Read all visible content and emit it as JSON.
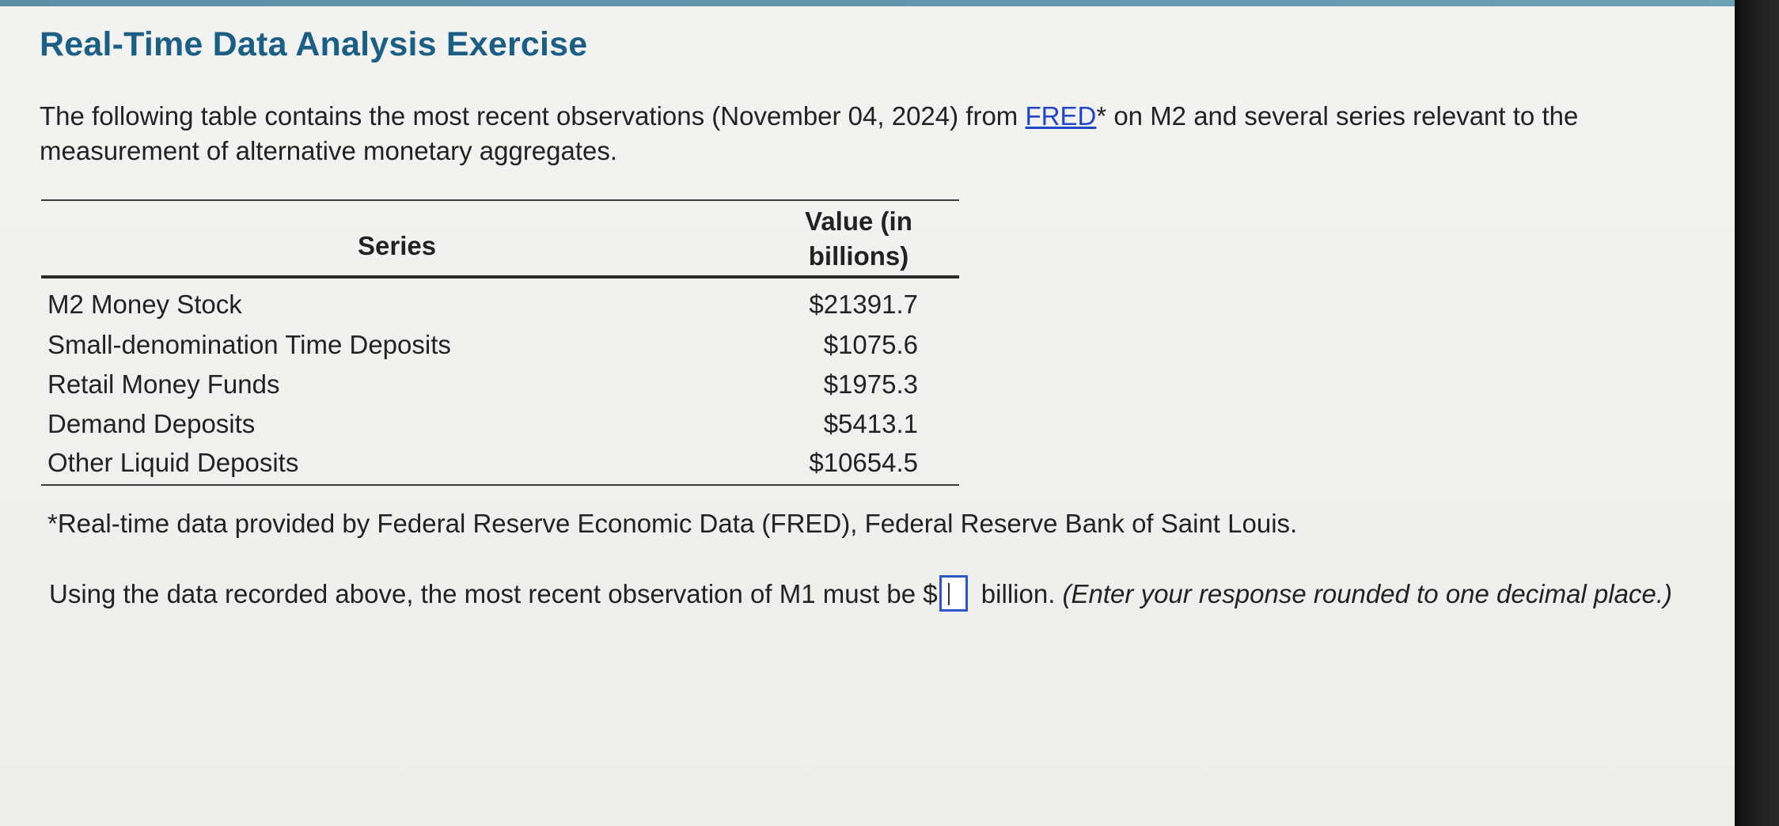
{
  "title": "Real-Time Data Analysis Exercise",
  "intro": {
    "before_link": "The following table contains the most recent observations (November 04, 2024) from ",
    "link_text": "FRED",
    "after_link": "* on M2 and several series relevant to the measurement of alternative monetary aggregates."
  },
  "table": {
    "header_series": "Series",
    "header_value": "Value (in billions)",
    "rows": [
      {
        "series": "M2 Money Stock",
        "value": "$21391.7"
      },
      {
        "series": "Small-denomination Time Deposits",
        "value": "$1075.6"
      },
      {
        "series": "Retail Money Funds",
        "value": "$1975.3"
      },
      {
        "series": "Demand Deposits",
        "value": "$5413.1"
      },
      {
        "series": "Other Liquid Deposits",
        "value": "$10654.5"
      }
    ]
  },
  "footnote": "*Real-time data provided by Federal Reserve Economic Data (FRED), Federal Reserve Bank of Saint Louis.",
  "question": {
    "before_input": "Using the data recorded above, the most recent observation of M1 must be $",
    "after_input": " billion. ",
    "instruction": "(Enter your response rounded to one decimal place.)",
    "input_value": ""
  }
}
